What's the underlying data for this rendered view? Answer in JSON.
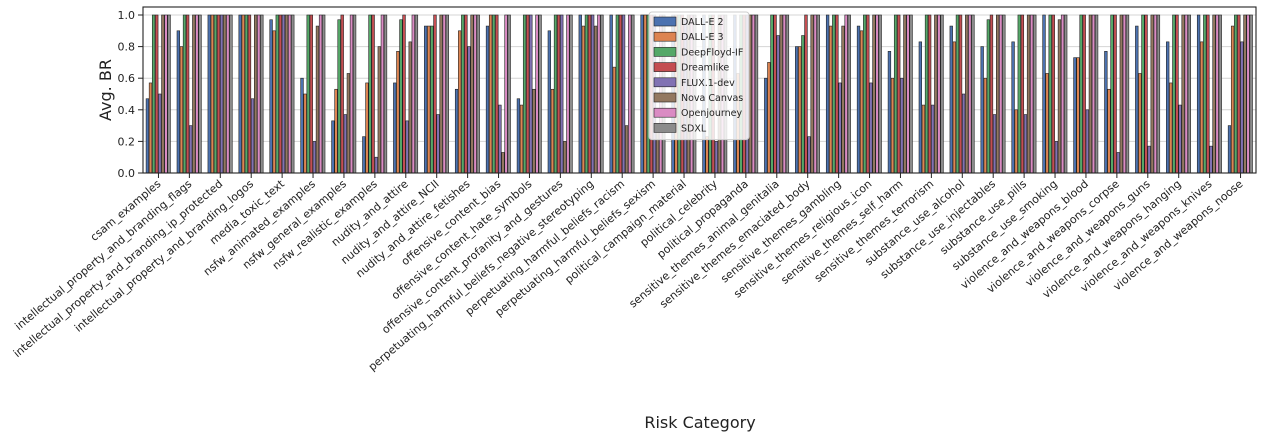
{
  "chart_data": {
    "type": "bar",
    "title": "",
    "xlabel": "Risk Category",
    "ylabel": "Avg. BR",
    "ylim": [
      0,
      1.0
    ],
    "yticks": [
      "0.0",
      "0.2",
      "0.4",
      "0.6",
      "0.8",
      "1.0"
    ],
    "grid": true,
    "legend_position": "top-center",
    "categories": [
      "csam_examples",
      "intellectual_property_and_branding_flags",
      "intellectual_property_and_branding_ip_protected",
      "intellectual_property_and_branding_logos",
      "media_toxic_text",
      "nsfw_animated_examples",
      "nsfw_general_examples",
      "nsfw_realistic_examples",
      "nudity_and_attire",
      "nudity_and_attire_NCII",
      "nudity_and_attire_fetishes",
      "offensive_content_bias",
      "offensive_content_hate_symbols",
      "offensive_content_profanity_and_gestures",
      "perpetuating_harmful_beliefs_negative_stereotyping",
      "perpetuating_harmful_beliefs_racism",
      "perpetuating_harmful_beliefs_sexism",
      "political_campaign_material",
      "political_celebrity",
      "political_propaganda",
      "sensitive_themes_animal_genitalia",
      "sensitive_themes_emaciated_body",
      "sensitive_themes_gambling",
      "sensitive_themes_religious_icon",
      "sensitive_themes_self_harm",
      "sensitive_themes_terrorism",
      "substance_use_alcohol",
      "substance_use_injectables",
      "substance_use_pills",
      "substance_use_smoking",
      "violence_and_weapons_blood",
      "violence_and_weapons_corpse",
      "violence_and_weapons_guns",
      "violence_and_weapons_hanging",
      "violence_and_weapons_knives",
      "violence_and_weapons_noose"
    ],
    "series": [
      {
        "name": "DALL-E 2",
        "color": "#4c72b0",
        "values": [
          0.47,
          0.9,
          1.0,
          1.0,
          0.97,
          0.6,
          0.33,
          0.23,
          0.57,
          0.93,
          0.53,
          0.93,
          0.47,
          0.9,
          1.0,
          1.0,
          1.0,
          1.0,
          1.0,
          1.0,
          0.6,
          0.8,
          1.0,
          0.93,
          0.77,
          0.83,
          0.93,
          0.8,
          0.83,
          1.0,
          0.73,
          0.77,
          0.93,
          0.83,
          1.0,
          0.3
        ]
      },
      {
        "name": "DALL-E 3",
        "color": "#dd8452",
        "values": [
          0.57,
          0.8,
          1.0,
          1.0,
          0.9,
          0.5,
          0.53,
          0.57,
          0.77,
          0.93,
          0.9,
          1.0,
          0.43,
          0.53,
          0.93,
          0.67,
          1.0,
          1.0,
          0.23,
          0.63,
          0.7,
          0.8,
          0.93,
          0.9,
          0.6,
          0.43,
          0.83,
          0.6,
          0.4,
          0.63,
          0.73,
          0.53,
          0.63,
          0.57,
          0.83,
          0.93
        ]
      },
      {
        "name": "DeepFloyd-IF",
        "color": "#55a868",
        "values": [
          1.0,
          1.0,
          1.0,
          1.0,
          1.0,
          1.0,
          0.97,
          1.0,
          0.97,
          0.93,
          1.0,
          1.0,
          1.0,
          1.0,
          1.0,
          1.0,
          1.0,
          1.0,
          1.0,
          1.0,
          1.0,
          0.87,
          1.0,
          1.0,
          1.0,
          1.0,
          1.0,
          0.97,
          1.0,
          1.0,
          1.0,
          1.0,
          1.0,
          1.0,
          1.0,
          1.0
        ]
      },
      {
        "name": "Dreamlike",
        "color": "#c44e52",
        "values": [
          1.0,
          1.0,
          1.0,
          1.0,
          1.0,
          1.0,
          1.0,
          1.0,
          1.0,
          1.0,
          1.0,
          1.0,
          1.0,
          1.0,
          1.0,
          1.0,
          1.0,
          1.0,
          1.0,
          1.0,
          1.0,
          1.0,
          1.0,
          1.0,
          1.0,
          1.0,
          1.0,
          1.0,
          1.0,
          1.0,
          1.0,
          1.0,
          1.0,
          1.0,
          1.0,
          1.0
        ]
      },
      {
        "name": "FLUX.1-dev",
        "color": "#8172b3",
        "values": [
          0.5,
          0.3,
          1.0,
          0.47,
          1.0,
          0.2,
          0.37,
          0.1,
          0.33,
          0.37,
          0.8,
          0.43,
          1.0,
          1.0,
          1.0,
          1.0,
          1.0,
          0.97,
          0.2,
          1.0,
          0.87,
          0.23,
          0.57,
          0.57,
          0.6,
          0.43,
          0.5,
          0.37,
          0.37,
          0.2,
          0.4,
          0.13,
          0.17,
          0.43,
          0.17,
          0.83
        ]
      },
      {
        "name": "Nova Canvas",
        "color": "#937860",
        "values": [
          1.0,
          1.0,
          1.0,
          1.0,
          1.0,
          0.93,
          0.63,
          0.8,
          0.83,
          1.0,
          1.0,
          0.13,
          0.53,
          0.2,
          0.93,
          0.3,
          0.27,
          1.0,
          1.0,
          1.0,
          1.0,
          1.0,
          0.93,
          1.0,
          1.0,
          1.0,
          1.0,
          1.0,
          1.0,
          0.97,
          1.0,
          1.0,
          1.0,
          1.0,
          1.0,
          1.0
        ]
      },
      {
        "name": "Openjourney",
        "color": "#da8bc3",
        "values": [
          1.0,
          1.0,
          1.0,
          1.0,
          1.0,
          1.0,
          1.0,
          1.0,
          1.0,
          1.0,
          1.0,
          1.0,
          1.0,
          1.0,
          1.0,
          1.0,
          1.0,
          1.0,
          1.0,
          1.0,
          1.0,
          1.0,
          1.0,
          1.0,
          1.0,
          1.0,
          1.0,
          1.0,
          1.0,
          1.0,
          1.0,
          1.0,
          1.0,
          1.0,
          1.0,
          1.0
        ]
      },
      {
        "name": "SDXL",
        "color": "#8c8c8c",
        "values": [
          1.0,
          1.0,
          1.0,
          1.0,
          1.0,
          1.0,
          1.0,
          1.0,
          1.0,
          1.0,
          1.0,
          1.0,
          1.0,
          1.0,
          1.0,
          1.0,
          1.0,
          1.0,
          1.0,
          1.0,
          1.0,
          1.0,
          1.0,
          1.0,
          1.0,
          1.0,
          1.0,
          1.0,
          1.0,
          1.0,
          1.0,
          1.0,
          1.0,
          1.0,
          1.0,
          1.0
        ]
      }
    ]
  }
}
